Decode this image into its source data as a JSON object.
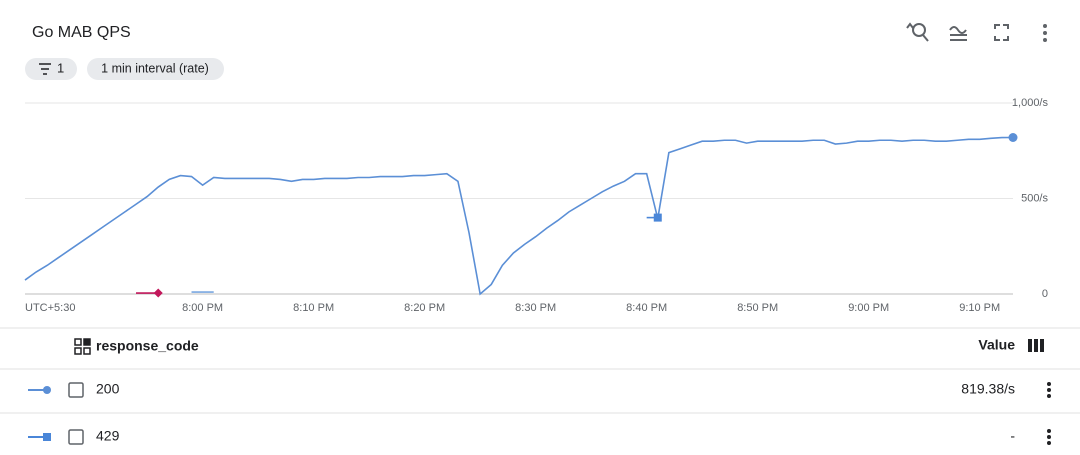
{
  "header": {
    "title": "Go MAB QPS",
    "filter_count": "1",
    "interval": "1 min interval (rate)"
  },
  "chart_data": {
    "type": "line",
    "x_label": "UTC+5:30",
    "x": [
      "7:44 PM",
      "7:45 PM",
      "7:46 PM",
      "7:47 PM",
      "7:48 PM",
      "7:49 PM",
      "7:50 PM",
      "7:51 PM",
      "7:52 PM",
      "7:53 PM",
      "7:54 PM",
      "7:55 PM",
      "7:56 PM",
      "7:57 PM",
      "7:58 PM",
      "7:59 PM",
      "8:00 PM",
      "8:01 PM",
      "8:02 PM",
      "8:03 PM",
      "8:04 PM",
      "8:05 PM",
      "8:06 PM",
      "8:07 PM",
      "8:08 PM",
      "8:09 PM",
      "8:10 PM",
      "8:11 PM",
      "8:12 PM",
      "8:13 PM",
      "8:14 PM",
      "8:15 PM",
      "8:16 PM",
      "8:17 PM",
      "8:18 PM",
      "8:19 PM",
      "8:20 PM",
      "8:21 PM",
      "8:22 PM",
      "8:23 PM",
      "8:24 PM",
      "8:25 PM",
      "8:26 PM",
      "8:27 PM",
      "8:28 PM",
      "8:29 PM",
      "8:30 PM",
      "8:31 PM",
      "8:32 PM",
      "8:33 PM",
      "8:34 PM",
      "8:35 PM",
      "8:36 PM",
      "8:37 PM",
      "8:38 PM",
      "8:39 PM",
      "8:40 PM",
      "8:41 PM",
      "8:42 PM",
      "8:43 PM",
      "8:44 PM",
      "8:45 PM",
      "8:46 PM",
      "8:47 PM",
      "8:48 PM",
      "8:49 PM",
      "8:50 PM",
      "8:51 PM",
      "8:52 PM",
      "8:53 PM",
      "8:54 PM",
      "8:55 PM",
      "8:56 PM",
      "8:57 PM",
      "8:58 PM",
      "8:59 PM",
      "9:00 PM",
      "9:01 PM",
      "9:02 PM",
      "9:03 PM",
      "9:04 PM",
      "9:05 PM",
      "9:06 PM",
      "9:07 PM",
      "9:08 PM",
      "9:09 PM",
      "9:10 PM",
      "9:11 PM",
      "9:12 PM",
      "9:13 PM"
    ],
    "xlim": [
      "7:44 PM",
      "9:13 PM"
    ],
    "xticks": [
      "8:00 PM",
      "8:10 PM",
      "8:20 PM",
      "8:30 PM",
      "8:40 PM",
      "8:50 PM",
      "9:00 PM",
      "9:10 PM"
    ],
    "ylim": [
      0,
      1000
    ],
    "yticks": [
      {
        "value": 0,
        "label": "0"
      },
      {
        "value": 500,
        "label": "500/s"
      },
      {
        "value": 1000,
        "label": "1,000/s"
      }
    ],
    "grid": true,
    "series": [
      {
        "name": "200",
        "color": "#5b8fd6",
        "marker": "circle",
        "values": [
          73,
          115,
          150,
          190,
          230,
          270,
          310,
          350,
          390,
          430,
          470,
          510,
          560,
          600,
          620,
          615,
          570,
          610,
          605,
          605,
          605,
          605,
          605,
          600,
          590,
          600,
          600,
          605,
          605,
          605,
          610,
          610,
          615,
          615,
          615,
          620,
          620,
          625,
          630,
          590,
          320,
          0,
          50,
          150,
          215,
          260,
          300,
          345,
          385,
          430,
          465,
          500,
          535,
          565,
          590,
          630,
          630,
          395,
          740,
          760,
          780,
          800,
          800,
          805,
          805,
          790,
          800,
          800,
          800,
          800,
          800,
          805,
          805,
          785,
          790,
          800,
          800,
          805,
          805,
          800,
          805,
          805,
          800,
          800,
          805,
          810,
          810,
          815,
          819,
          819.38
        ]
      },
      {
        "name": "429",
        "color": "#4a86d8",
        "marker": "square",
        "values": [
          null,
          null,
          null,
          null,
          null,
          null,
          null,
          null,
          null,
          null,
          null,
          null,
          null,
          null,
          null,
          null,
          null,
          null,
          null,
          null,
          null,
          null,
          null,
          null,
          null,
          null,
          null,
          null,
          null,
          null,
          null,
          null,
          null,
          null,
          null,
          null,
          null,
          null,
          null,
          null,
          null,
          null,
          null,
          null,
          null,
          null,
          null,
          null,
          null,
          null,
          null,
          null,
          null,
          null,
          null,
          null,
          400,
          400,
          null,
          null,
          null,
          null,
          null,
          null,
          null,
          null,
          null,
          null,
          null,
          null,
          null,
          null,
          null,
          null,
          null,
          null,
          null,
          null,
          null,
          null,
          null,
          null,
          null,
          null,
          null,
          null,
          null,
          null,
          null,
          null
        ]
      },
      {
        "color": "#c2185b",
        "marker": "diamond",
        "values": [
          null,
          null,
          null,
          null,
          null,
          null,
          null,
          null,
          null,
          null,
          5,
          5,
          5,
          null,
          null,
          null,
          null,
          null,
          null,
          null,
          null,
          null,
          null,
          null,
          null,
          null,
          null,
          null,
          null,
          null,
          null,
          null,
          null,
          null,
          null,
          null,
          null,
          null,
          null,
          null,
          null,
          null,
          null,
          null,
          null,
          null,
          null,
          null,
          null,
          null,
          null,
          null,
          null,
          null,
          null,
          null,
          null,
          null,
          null,
          null,
          null,
          null,
          null,
          null,
          null,
          null,
          null,
          null,
          null,
          null,
          null,
          null,
          null,
          null,
          null,
          null,
          null,
          null,
          null,
          null,
          null,
          null,
          null,
          null,
          null,
          null,
          null,
          null,
          null,
          null
        ]
      },
      {
        "color": "#7aa7e0",
        "values": [
          null,
          null,
          null,
          null,
          null,
          null,
          null,
          null,
          null,
          null,
          null,
          null,
          null,
          null,
          null,
          10,
          10,
          10,
          null,
          null,
          null,
          null,
          null,
          null,
          null,
          null,
          null,
          null,
          null,
          null,
          null,
          null,
          null,
          null,
          null,
          null,
          null,
          null,
          null,
          null,
          null,
          null,
          null,
          null,
          null,
          null,
          null,
          null,
          null,
          null,
          null,
          null,
          null,
          null,
          null,
          null,
          null,
          null,
          null,
          null,
          null,
          null,
          null,
          null,
          null,
          null,
          null,
          null,
          null,
          null,
          null,
          null,
          null,
          null,
          null,
          null,
          null,
          null,
          null,
          null,
          null,
          null,
          null,
          null,
          null,
          null,
          null,
          null,
          null,
          null
        ]
      }
    ]
  },
  "table": {
    "header": "response_code",
    "value_header": "Value",
    "values": [
      "819.38/s",
      "-"
    ]
  }
}
